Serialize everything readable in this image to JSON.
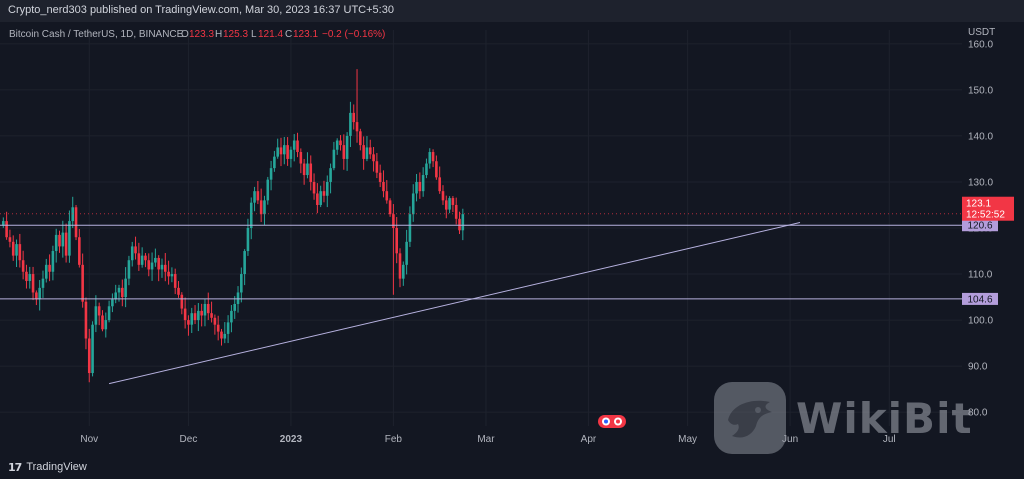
{
  "publisher_line": "Crypto_nerd303 published on TradingView.com, Mar 30, 2023 16:37 UTC+5:30",
  "brand": "TradingView",
  "watermark_text": "WikiBit",
  "watermark_icon": "eagle-icon",
  "colors": {
    "bg": "#131722",
    "up": "#26a69a",
    "down": "#f23645",
    "grid": "#1e222d",
    "line": "#b7b2e0",
    "axis_text": "#b2b5be",
    "label_bg": "#b39ddb"
  },
  "chart_data": {
    "type": "candlestick",
    "symbol": "Bitcoin Cash / TetherUS, 1D, BINANCE",
    "ohlc": {
      "o": "123.3",
      "h": "125.3",
      "l": "121.4",
      "c": "123.1",
      "chg": "−0.2 (−0.16%)"
    },
    "currency": "USDT",
    "y_ticks": [
      "160.0",
      "150.0",
      "140.0",
      "130.0",
      "120.0",
      "110.0",
      "100.0",
      "90.0",
      "80.0"
    ],
    "ylim": [
      77,
      163
    ],
    "x_ticks": [
      {
        "label": "Nov",
        "t": 0
      },
      {
        "label": "Dec",
        "t": 30
      },
      {
        "label": "2023",
        "t": 61,
        "bold": true
      },
      {
        "label": "Feb",
        "t": 92
      },
      {
        "label": "Mar",
        "t": 120
      },
      {
        "label": "Apr",
        "t": 151
      },
      {
        "label": "May",
        "t": 181
      },
      {
        "label": "Jun",
        "t": 212
      },
      {
        "label": "Jul",
        "t": 242
      }
    ],
    "xlim": [
      -27,
      264
    ],
    "last_price": "123.1",
    "countdown": "12:52:52",
    "levels": [
      {
        "value": 120.6,
        "label": "120.6"
      },
      {
        "value": 104.6,
        "label": "104.6"
      }
    ],
    "trendline": {
      "t1": 6,
      "p1": 86.2,
      "t2": 215,
      "p2": 121.2
    },
    "series_closes": [
      121.5,
      118.0,
      117.0,
      114.0,
      116.5,
      113.0,
      110.5,
      108.5,
      110.0,
      106.0,
      104.5,
      107.0,
      109.0,
      112.0,
      110.5,
      115.0,
      118.5,
      116.0,
      119.0,
      114.0,
      121.5,
      124.5,
      118.0,
      112.0,
      104.0,
      96.0,
      88.5,
      99.0,
      103.0,
      101.0,
      98.0,
      100.0,
      103.0,
      104.5,
      106.0,
      107.0,
      105.0,
      109.0,
      113.0,
      116.0,
      114.5,
      112.0,
      114.0,
      113.0,
      111.0,
      112.5,
      113.5,
      111.0,
      112.0,
      110.5,
      109.5,
      110.0,
      107.0,
      105.5,
      102.5,
      100.0,
      99.0,
      101.5,
      100.0,
      102.0,
      101.0,
      103.5,
      101.5,
      100.5,
      99.0,
      97.5,
      96.0,
      97.0,
      99.5,
      102.0,
      103.5,
      106.0,
      110.0,
      115.0,
      120.0,
      125.5,
      128.0,
      126.0,
      123.0,
      126.0,
      130.5,
      133.0,
      135.5,
      137.5,
      136.0,
      138.0,
      135.0,
      137.0,
      139.0,
      136.5,
      134.0,
      131.5,
      134.0,
      130.0,
      127.5,
      125.0,
      128.0,
      127.0,
      130.0,
      133.0,
      137.0,
      139.0,
      138.0,
      135.0,
      140.0,
      145.0,
      143.0,
      141.0,
      138.0,
      135.0,
      137.5,
      136.0,
      134.5,
      132.0,
      130.0,
      128.0,
      126.0,
      123.0,
      120.0,
      114.5,
      109.0,
      112.0,
      117.0,
      123.0,
      127.5,
      130.0,
      128.0,
      131.5,
      134.0,
      136.5,
      134.5,
      131.0,
      128.0,
      126.0,
      124.0,
      126.5,
      125.0,
      122.0,
      119.5,
      123.0
    ]
  }
}
